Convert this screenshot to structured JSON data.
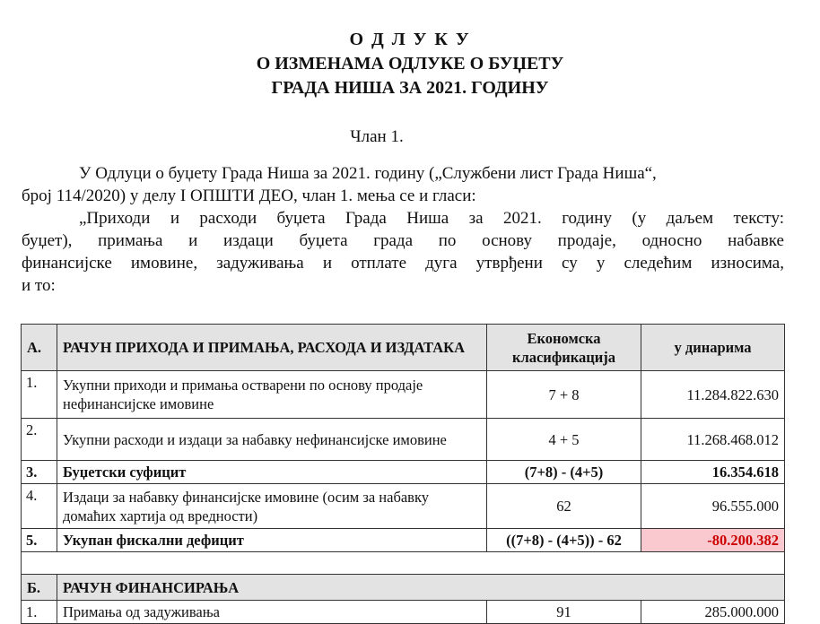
{
  "heading": {
    "line1": "О Д Л У К У",
    "line2": "О ИЗМЕНАМА ОДЛУКЕ О БУЏЕТУ",
    "line3": "ГРАДА НИША ЗА 2021. ГОДИНУ"
  },
  "article": "Члан 1.",
  "para1": {
    "line1": "У Одлуци о буџету Града Ниша за 2021. годину („Службени лист Града Ниша“,",
    "line2": "број 114/2020) у делу I ОПШТИ ДЕО, члан 1. мења се и гласи:"
  },
  "para2": {
    "line1": "„Приходи и расходи буџета Града Ниша за 2021. годину (у даљем тексту:",
    "line2": "буџет), примања и издаци буџета града по основу продаје, односно набавке",
    "line3": "финансијске имовине, задуживања и отплате дуга утврђени су у следећим износима,",
    "line4": "и то:"
  },
  "table": {
    "sectionA": {
      "num": "А.",
      "title": "РАЧУН ПРИХОДА И ПРИМАЊА, РАСХОДА И ИЗДАТАКА",
      "col_class": "Економска класификација",
      "col_amount": "у динарима"
    },
    "rowsA": [
      {
        "num": "1.",
        "label": "Укупни приходи и примања остварени по основу продаје нефинансијске имовине",
        "class": "7 + 8",
        "amount": "11.284.822.630"
      },
      {
        "num": "2.",
        "label": "Укупни расходи и издаци за набавку нефинансијске имовине",
        "class": "4 + 5",
        "amount": "11.268.468.012"
      },
      {
        "num": "3.",
        "label": "Буџетски суфицит",
        "class": "(7+8) - (4+5)",
        "amount": "16.354.618"
      },
      {
        "num": "4.",
        "label": "Издаци за набавку финансијске имовине (осим за набавку домаћих хартија од вредности)",
        "class": "62",
        "amount": "96.555.000"
      },
      {
        "num": "5.",
        "label": "Укупан фискални дефицит",
        "class": "((7+8) - (4+5)) - 62",
        "amount": "-80.200.382"
      }
    ],
    "sectionB": {
      "num": "Б.",
      "title": "РАЧУН ФИНАНСИРАЊА"
    },
    "rowsB": [
      {
        "num": "1.",
        "label": "Примања од задуживања",
        "class": "91",
        "amount": "285.000.000"
      }
    ]
  },
  "colors": {
    "highlight": "#f9c9cf",
    "negative": "#cc0000",
    "header_bg": "#e3e3e3"
  }
}
